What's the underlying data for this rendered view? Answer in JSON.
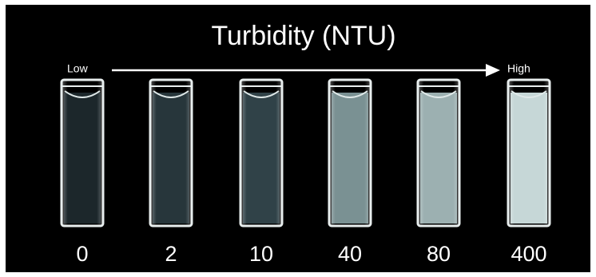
{
  "header": {
    "title": "Turbidity (NTU)",
    "low": "Low",
    "high": "High"
  },
  "samples": [
    0,
    2,
    10,
    40,
    80,
    400
  ]
}
